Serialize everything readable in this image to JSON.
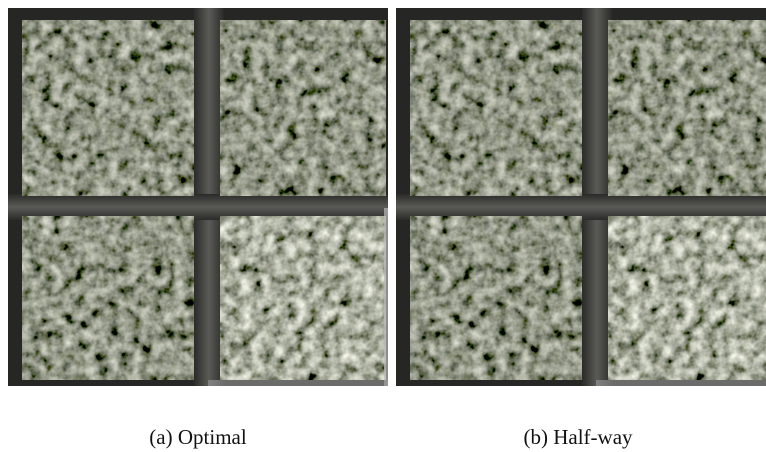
{
  "figures": [
    {
      "caption": "(a) Optimal"
    },
    {
      "caption": "(b) Half-way"
    }
  ]
}
